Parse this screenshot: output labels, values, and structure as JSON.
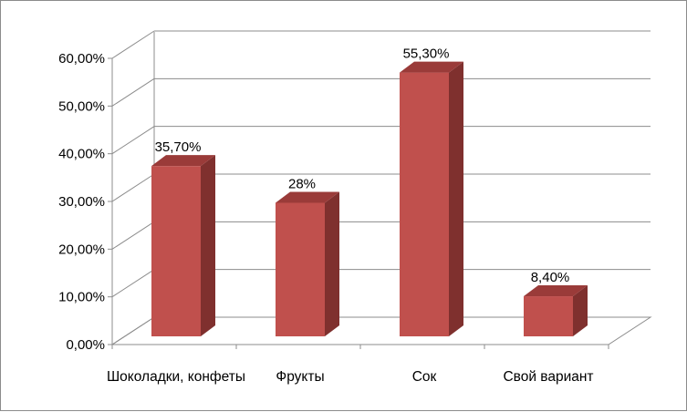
{
  "chart_data": {
    "type": "bar",
    "style": "3d-column",
    "categories": [
      "Шоколадки, конфеты",
      "Фрукты",
      "Сок",
      "Свой вариант"
    ],
    "values": [
      0.357,
      0.28,
      0.553,
      0.084
    ],
    "data_labels": [
      "35,70%",
      "28%",
      "55,30%",
      "8,40%"
    ],
    "y_ticks": [
      "0,00%",
      "10,00%",
      "20,00%",
      "30,00%",
      "40,00%",
      "50,00%",
      "60,00%"
    ],
    "ylim": [
      0,
      0.6
    ],
    "grid": true,
    "legend": false,
    "title": "",
    "xlabel": "",
    "ylabel": "",
    "colors": {
      "bar_front": "#c0504d",
      "bar_side": "#7f302e",
      "bar_top": "#9a3b39",
      "grid": "#8c8c8c"
    }
  }
}
